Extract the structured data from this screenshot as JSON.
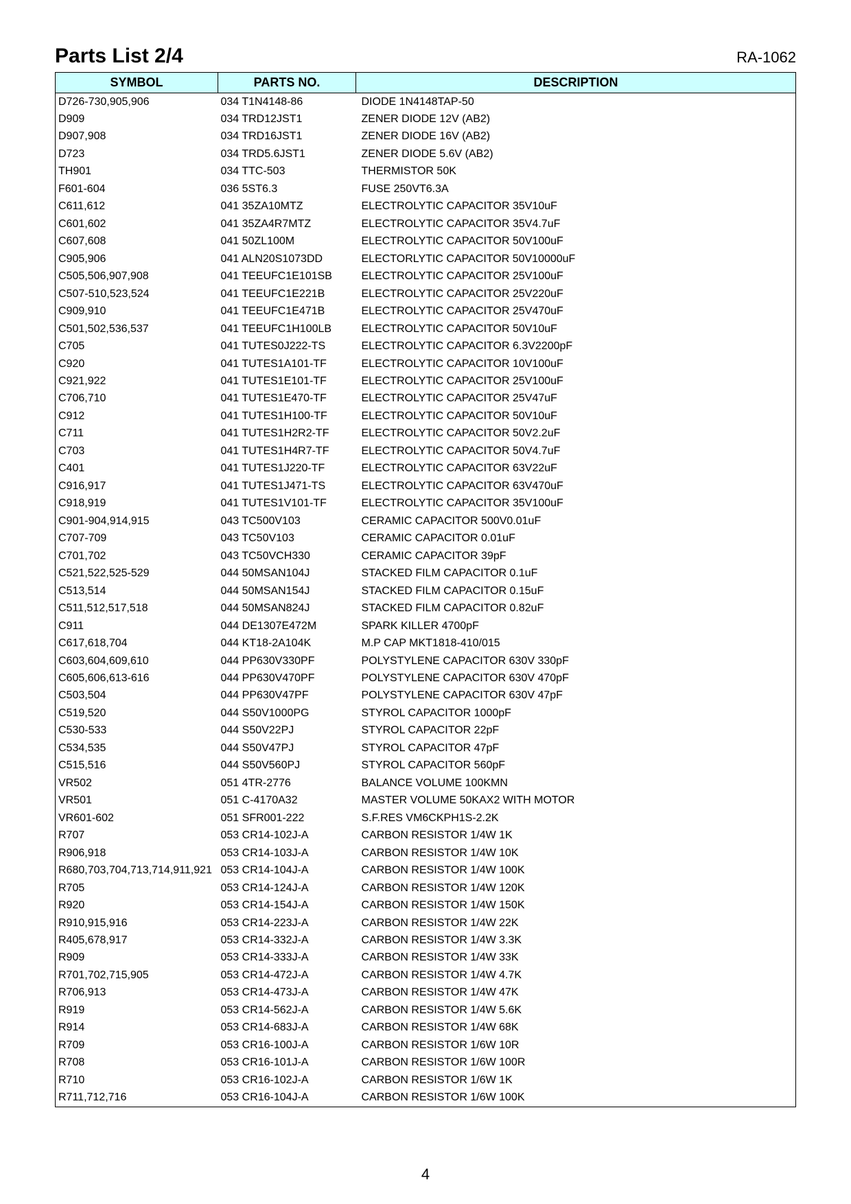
{
  "header": {
    "title": "Parts List 2/4",
    "model": "RA-1062"
  },
  "table": {
    "header_bg": "#ccffff",
    "columns": [
      {
        "key": "symbol",
        "label": "SYMBOL"
      },
      {
        "key": "partno",
        "label": "PARTS NO."
      },
      {
        "key": "desc",
        "label": "DESCRIPTION"
      }
    ],
    "rows": [
      {
        "symbol": "D726-730,905,906",
        "partno": "034 T1N4148-86",
        "desc": "DIODE 1N4148TAP-50"
      },
      {
        "symbol": "D909",
        "partno": "034 TRD12JST1",
        "desc": "ZENER DIODE 12V (AB2)"
      },
      {
        "symbol": "D907,908",
        "partno": "034 TRD16JST1",
        "desc": "ZENER DIODE 16V (AB2)"
      },
      {
        "symbol": "D723",
        "partno": "034 TRD5.6JST1",
        "desc": "ZENER DIODE 5.6V (AB2)"
      },
      {
        "symbol": "TH901",
        "partno": "034 TTC-503",
        "desc": "THERMISTOR 50K"
      },
      {
        "symbol": "F601-604",
        "partno": "036 5ST6.3",
        "desc": "FUSE 250VT6.3A"
      },
      {
        "symbol": "C611,612",
        "partno": "041 35ZA10MTZ",
        "desc": "ELECTROLYTIC CAPACITOR 35V10uF"
      },
      {
        "symbol": "C601,602",
        "partno": "041 35ZA4R7MTZ",
        "desc": "ELECTROLYTIC CAPACITOR 35V4.7uF"
      },
      {
        "symbol": "C607,608",
        "partno": "041 50ZL100M",
        "desc": "ELECTROLYTIC CAPACITOR 50V100uF"
      },
      {
        "symbol": "C905,906",
        "partno": "041 ALN20S1073DD",
        "desc": "ELECTORLYTIC CAPACITOR 50V10000uF"
      },
      {
        "symbol": "C505,506,907,908",
        "partno": "041 TEEUFC1E101SB",
        "desc": "ELECTROLYTIC CAPACITOR 25V100uF"
      },
      {
        "symbol": "C507-510,523,524",
        "partno": "041 TEEUFC1E221B",
        "desc": "ELECTROLYTIC CAPACITOR 25V220uF"
      },
      {
        "symbol": "C909,910",
        "partno": "041 TEEUFC1E471B",
        "desc": "ELECTROLYTIC CAPACITOR 25V470uF"
      },
      {
        "symbol": "C501,502,536,537",
        "partno": "041 TEEUFC1H100LB",
        "desc": "ELECTROLYTIC CAPACITOR 50V10uF"
      },
      {
        "symbol": "C705",
        "partno": "041 TUTES0J222-TS",
        "desc": "ELECTROLYTIC CAPACITOR 6.3V2200pF"
      },
      {
        "symbol": "C920",
        "partno": "041 TUTES1A101-TF",
        "desc": "ELECTROLYTIC CAPACITOR 10V100uF"
      },
      {
        "symbol": "C921,922",
        "partno": "041 TUTES1E101-TF",
        "desc": "ELECTROLYTIC CAPACITOR 25V100uF"
      },
      {
        "symbol": "C706,710",
        "partno": "041 TUTES1E470-TF",
        "desc": "ELECTROLYTIC CAPACITOR 25V47uF"
      },
      {
        "symbol": "C912",
        "partno": "041 TUTES1H100-TF",
        "desc": "ELECTROLYTIC CAPACITOR 50V10uF"
      },
      {
        "symbol": "C711",
        "partno": "041 TUTES1H2R2-TF",
        "desc": "ELECTROLYTIC CAPACITOR 50V2.2uF"
      },
      {
        "symbol": "C703",
        "partno": "041 TUTES1H4R7-TF",
        "desc": "ELECTROLYTIC CAPACITOR 50V4.7uF"
      },
      {
        "symbol": "C401",
        "partno": "041 TUTES1J220-TF",
        "desc": "ELECTROLYTIC CAPACITOR 63V22uF"
      },
      {
        "symbol": "C916,917",
        "partno": "041 TUTES1J471-TS",
        "desc": "ELECTROLYTIC CAPACITOR 63V470uF"
      },
      {
        "symbol": "C918,919",
        "partno": "041 TUTES1V101-TF",
        "desc": "ELECTROLYTIC CAPACITOR 35V100uF"
      },
      {
        "symbol": "C901-904,914,915",
        "partno": "043 TC500V103",
        "desc": "CERAMIC CAPACITOR 500V0.01uF"
      },
      {
        "symbol": "C707-709",
        "partno": "043 TC50V103",
        "desc": "CERAMIC CAPACITOR 0.01uF"
      },
      {
        "symbol": "C701,702",
        "partno": "043 TC50VCH330",
        "desc": "CERAMIC CAPACITOR 39pF"
      },
      {
        "symbol": "C521,522,525-529",
        "partno": "044 50MSAN104J",
        "desc": "STACKED FILM CAPACITOR 0.1uF"
      },
      {
        "symbol": "C513,514",
        "partno": "044 50MSAN154J",
        "desc": "STACKED FILM CAPACITOR 0.15uF"
      },
      {
        "symbol": "C511,512,517,518",
        "partno": "044 50MSAN824J",
        "desc": "STACKED FILM CAPACITOR 0.82uF"
      },
      {
        "symbol": "C911",
        "partno": "044 DE1307E472M",
        "desc": "SPARK KILLER 4700pF"
      },
      {
        "symbol": "C617,618,704",
        "partno": "044 KT18-2A104K",
        "desc": "M.P CAP MKT1818-410/015"
      },
      {
        "symbol": "C603,604,609,610",
        "partno": "044 PP630V330PF",
        "desc": "POLYSTYLENE CAPACITOR 630V 330pF"
      },
      {
        "symbol": "C605,606,613-616",
        "partno": "044 PP630V470PF",
        "desc": "POLYSTYLENE CAPACITOR 630V 470pF"
      },
      {
        "symbol": "C503,504",
        "partno": "044 PP630V47PF",
        "desc": "POLYSTYLENE CAPACITOR 630V 47pF"
      },
      {
        "symbol": "C519,520",
        "partno": "044 S50V1000PG",
        "desc": "STYROL CAPACITOR 1000pF"
      },
      {
        "symbol": "C530-533",
        "partno": "044 S50V22PJ",
        "desc": "STYROL CAPACITOR 22pF"
      },
      {
        "symbol": "C534,535",
        "partno": "044 S50V47PJ",
        "desc": "STYROL CAPACITOR 47pF"
      },
      {
        "symbol": "C515,516",
        "partno": "044 S50V560PJ",
        "desc": "STYROL CAPACITOR 560pF"
      },
      {
        "symbol": "VR502",
        "partno": "051 4TR-2776",
        "desc": "BALANCE VOLUME 100KMN"
      },
      {
        "symbol": "VR501",
        "partno": "051 C-4170A32",
        "desc": "MASTER VOLUME 50KAX2 WITH MOTOR"
      },
      {
        "symbol": "VR601-602",
        "partno": "051 SFR001-222",
        "desc": "S.F.RES VM6CKPH1S-2.2K"
      },
      {
        "symbol": "R707",
        "partno": "053 CR14-102J-A",
        "desc": "CARBON RESISTOR 1/4W 1K"
      },
      {
        "symbol": "R906,918",
        "partno": "053 CR14-103J-A",
        "desc": "CARBON RESISTOR 1/4W 10K"
      },
      {
        "symbol": "R680,703,704,713,714,911,921",
        "partno": "053 CR14-104J-A",
        "desc": "CARBON RESISTOR 1/4W 100K"
      },
      {
        "symbol": "R705",
        "partno": "053 CR14-124J-A",
        "desc": "CARBON RESISTOR 1/4W 120K"
      },
      {
        "symbol": "R920",
        "partno": "053 CR14-154J-A",
        "desc": "CARBON RESISTOR 1/4W 150K"
      },
      {
        "symbol": "R910,915,916",
        "partno": "053 CR14-223J-A",
        "desc": "CARBON RESISTOR 1/4W 22K"
      },
      {
        "symbol": "R405,678,917",
        "partno": "053 CR14-332J-A",
        "desc": "CARBON RESISTOR 1/4W 3.3K"
      },
      {
        "symbol": "R909",
        "partno": "053 CR14-333J-A",
        "desc": "CARBON RESISTOR 1/4W 33K"
      },
      {
        "symbol": "R701,702,715,905",
        "partno": "053 CR14-472J-A",
        "desc": "CARBON RESISTOR 1/4W 4.7K"
      },
      {
        "symbol": "R706,913",
        "partno": "053 CR14-473J-A",
        "desc": "CARBON RESISTOR 1/4W 47K"
      },
      {
        "symbol": "R919",
        "partno": "053 CR14-562J-A",
        "desc": "CARBON RESISTOR 1/4W 5.6K"
      },
      {
        "symbol": "R914",
        "partno": "053 CR14-683J-A",
        "desc": "CARBON RESISTOR 1/4W 68K"
      },
      {
        "symbol": "R709",
        "partno": "053 CR16-100J-A",
        "desc": "CARBON RESISTOR 1/6W 10R"
      },
      {
        "symbol": "R708",
        "partno": "053 CR16-101J-A",
        "desc": "CARBON RESISTOR 1/6W 100R"
      },
      {
        "symbol": "R710",
        "partno": "053 CR16-102J-A",
        "desc": "CARBON RESISTOR 1/6W 1K"
      },
      {
        "symbol": "R711,712,716",
        "partno": "053 CR16-104J-A",
        "desc": "CARBON RESISTOR 1/6W 100K"
      }
    ]
  },
  "footer": {
    "page_number": "4"
  }
}
